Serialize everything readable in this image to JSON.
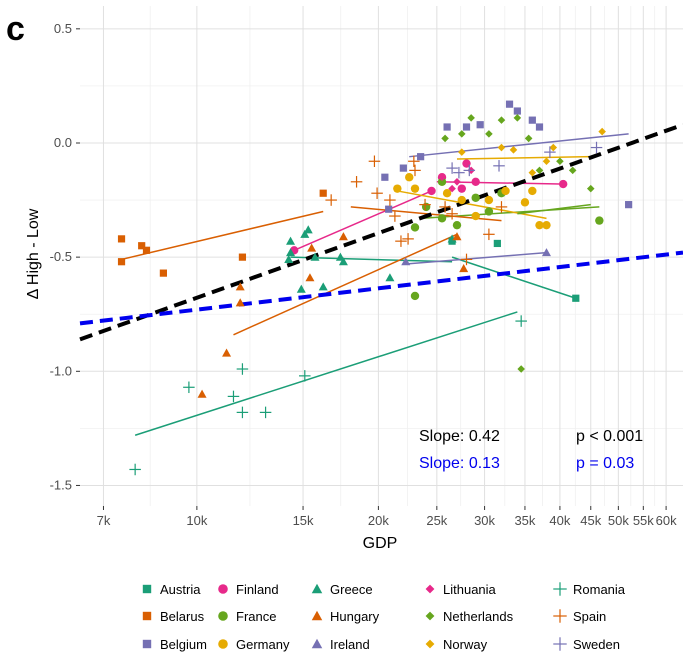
{
  "panel_label": "c",
  "chart_data": {
    "type": "scatter",
    "xlabel": "GDP",
    "ylabel": "Δ High - Low",
    "x_scale": "log",
    "xlim": [
      6400,
      64000
    ],
    "ylim": [
      -1.59,
      0.6
    ],
    "grid": true,
    "x_ticks": [
      {
        "value": 7000,
        "label": "7k"
      },
      {
        "value": 10000,
        "label": "10k"
      },
      {
        "value": 15000,
        "label": "15k"
      },
      {
        "value": 20000,
        "label": "20k"
      },
      {
        "value": 25000,
        "label": "25k"
      },
      {
        "value": 30000,
        "label": "30k"
      },
      {
        "value": 35000,
        "label": "35k"
      },
      {
        "value": 40000,
        "label": "40k"
      },
      {
        "value": 45000,
        "label": "45k"
      },
      {
        "value": 50000,
        "label": "50k"
      },
      {
        "value": 55000,
        "label": "55k"
      },
      {
        "value": 60000,
        "label": "60k"
      }
    ],
    "y_ticks": [
      {
        "value": 0.5,
        "label": "0.5"
      },
      {
        "value": 0.0,
        "label": "0.0"
      },
      {
        "value": -0.5,
        "label": "-0.5"
      },
      {
        "value": -1.0,
        "label": "-1.0"
      },
      {
        "value": -1.5,
        "label": "-1.5"
      }
    ],
    "legend_position": "bottom",
    "series": [
      {
        "name": "Austria",
        "color": "#1b9e77",
        "shape": "square",
        "points": [
          [
            31500,
            -0.44
          ],
          [
            42500,
            -0.68
          ],
          [
            26500,
            -0.43
          ]
        ],
        "fit": [
          [
            26500,
            -0.5
          ],
          [
            42500,
            -0.68
          ]
        ]
      },
      {
        "name": "Belarus",
        "color": "#d95f02",
        "shape": "square",
        "points": [
          [
            7500,
            -0.42
          ],
          [
            7500,
            -0.52
          ],
          [
            8100,
            -0.45
          ],
          [
            8250,
            -0.47
          ],
          [
            8800,
            -0.57
          ],
          [
            11900,
            -0.5
          ],
          [
            16200,
            -0.22
          ]
        ],
        "fit": [
          [
            7500,
            -0.51
          ],
          [
            16200,
            -0.3
          ]
        ]
      },
      {
        "name": "Belgium",
        "color": "#7570b3",
        "shape": "square",
        "points": [
          [
            22000,
            -0.11
          ],
          [
            23500,
            -0.06
          ],
          [
            26000,
            0.07
          ],
          [
            28000,
            0.07
          ],
          [
            29500,
            0.08
          ],
          [
            33000,
            0.17
          ],
          [
            34000,
            0.14
          ],
          [
            36000,
            0.1
          ],
          [
            37000,
            0.07
          ],
          [
            20500,
            -0.15
          ],
          [
            52000,
            -0.27
          ],
          [
            20800,
            -0.29
          ]
        ],
        "fit": null
      },
      {
        "name": "Finland",
        "color": "#e7298a",
        "shape": "circle",
        "points": [
          [
            24500,
            -0.21
          ],
          [
            25500,
            -0.15
          ],
          [
            27500,
            -0.2
          ],
          [
            29000,
            -0.17
          ],
          [
            40500,
            -0.18
          ],
          [
            28000,
            -0.09
          ],
          [
            14500,
            -0.47
          ]
        ],
        "fit": [
          [
            14500,
            -0.47
          ],
          [
            24500,
            -0.21
          ]
        ]
      },
      {
        "name": "France",
        "color": "#66a61e",
        "shape": "circle",
        "points": [
          [
            23000,
            -0.67
          ],
          [
            24000,
            -0.28
          ],
          [
            25500,
            -0.17
          ],
          [
            25500,
            -0.33
          ],
          [
            27000,
            -0.36
          ],
          [
            29000,
            -0.24
          ],
          [
            30500,
            -0.3
          ],
          [
            32000,
            -0.22
          ],
          [
            46500,
            -0.34
          ],
          [
            23000,
            -0.37
          ]
        ],
        "fit": [
          [
            23500,
            -0.33
          ],
          [
            46500,
            -0.28
          ]
        ]
      },
      {
        "name": "Germany",
        "color": "#e6ab02",
        "shape": "circle",
        "points": [
          [
            21500,
            -0.2
          ],
          [
            23000,
            -0.2
          ],
          [
            26000,
            -0.22
          ],
          [
            27500,
            -0.25
          ],
          [
            29000,
            -0.32
          ],
          [
            30500,
            -0.25
          ],
          [
            32500,
            -0.21
          ],
          [
            35000,
            -0.26
          ],
          [
            36000,
            -0.21
          ],
          [
            37000,
            -0.36
          ],
          [
            38000,
            -0.36
          ],
          [
            22500,
            -0.15
          ]
        ],
        "fit": [
          [
            21500,
            -0.21
          ],
          [
            38000,
            -0.33
          ]
        ]
      },
      {
        "name": "Greece",
        "color": "#1b9e77",
        "shape": "triangle",
        "points": [
          [
            14300,
            -0.43
          ],
          [
            14300,
            -0.48
          ],
          [
            15100,
            -0.4
          ],
          [
            15300,
            -0.38
          ],
          [
            15700,
            -0.5
          ],
          [
            17500,
            -0.52
          ],
          [
            17300,
            -0.5
          ],
          [
            16200,
            -0.63
          ],
          [
            14900,
            -0.64
          ],
          [
            20900,
            -0.59
          ],
          [
            26500,
            -0.42
          ],
          [
            14200,
            -0.51
          ]
        ],
        "fit": [
          [
            14300,
            -0.5
          ],
          [
            26500,
            -0.52
          ]
        ]
      },
      {
        "name": "Hungary",
        "color": "#d95f02",
        "shape": "triangle",
        "points": [
          [
            10200,
            -1.1
          ],
          [
            11200,
            -0.92
          ],
          [
            11800,
            -0.7
          ],
          [
            11800,
            -0.63
          ],
          [
            15400,
            -0.59
          ],
          [
            15500,
            -0.46
          ],
          [
            17500,
            -0.41
          ],
          [
            27700,
            -0.55
          ],
          [
            27000,
            -0.41
          ]
        ],
        "fit": [
          [
            11500,
            -0.84
          ],
          [
            27000,
            -0.4
          ]
        ]
      },
      {
        "name": "Ireland",
        "color": "#7570b3",
        "shape": "triangle",
        "points": [
          [
            22200,
            -0.52
          ],
          [
            38000,
            -0.48
          ]
        ],
        "fit": [
          [
            22200,
            -0.53
          ],
          [
            38000,
            -0.48
          ]
        ]
      },
      {
        "name": "Lithuania",
        "color": "#e7298a",
        "shape": "diamond",
        "points": [
          [
            25500,
            -0.15
          ],
          [
            26500,
            -0.2
          ],
          [
            27000,
            -0.17
          ],
          [
            24500,
            -0.21
          ],
          [
            28500,
            -0.12
          ]
        ],
        "fit": [
          [
            25000,
            -0.17
          ],
          [
            41000,
            -0.18
          ]
        ]
      },
      {
        "name": "Netherlands",
        "color": "#66a61e",
        "shape": "diamond",
        "points": [
          [
            25800,
            0.02
          ],
          [
            27500,
            0.04
          ],
          [
            28500,
            0.11
          ],
          [
            30500,
            0.04
          ],
          [
            32000,
            0.1
          ],
          [
            34000,
            0.11
          ],
          [
            35500,
            0.02
          ],
          [
            37000,
            -0.12
          ],
          [
            40000,
            -0.08
          ],
          [
            42000,
            -0.12
          ],
          [
            45000,
            -0.2
          ],
          [
            34500,
            -0.99
          ]
        ],
        "fit": [
          [
            34000,
            -0.31
          ],
          [
            45000,
            -0.27
          ]
        ]
      },
      {
        "name": "Norway",
        "color": "#e6ab02",
        "shape": "diamond",
        "points": [
          [
            27500,
            -0.04
          ],
          [
            32000,
            -0.02
          ],
          [
            33500,
            -0.03
          ],
          [
            39000,
            -0.02
          ],
          [
            47000,
            0.05
          ],
          [
            38000,
            -0.08
          ],
          [
            36000,
            -0.13
          ]
        ],
        "fit": [
          [
            27000,
            -0.07
          ],
          [
            45000,
            -0.06
          ]
        ]
      },
      {
        "name": "Romania",
        "color": "#1b9e77",
        "shape": "plus",
        "points": [
          [
            7900,
            -1.43
          ],
          [
            9700,
            -1.07
          ],
          [
            11500,
            -1.11
          ],
          [
            11900,
            -0.99
          ],
          [
            11900,
            -1.18
          ],
          [
            13000,
            -1.18
          ],
          [
            15100,
            -1.02
          ],
          [
            34500,
            -0.78
          ]
        ],
        "fit": [
          [
            7900,
            -1.28
          ],
          [
            34000,
            -0.74
          ]
        ]
      },
      {
        "name": "Spain",
        "color": "#d95f02",
        "shape": "plus",
        "points": [
          [
            16700,
            -0.25
          ],
          [
            18400,
            -0.17
          ],
          [
            19700,
            -0.08
          ],
          [
            19900,
            -0.22
          ],
          [
            20900,
            -0.25
          ],
          [
            21300,
            -0.32
          ],
          [
            21800,
            -0.43
          ],
          [
            22400,
            -0.42
          ],
          [
            22900,
            -0.08
          ],
          [
            23000,
            -0.12
          ],
          [
            23900,
            -0.27
          ],
          [
            25800,
            -0.28
          ],
          [
            26500,
            -0.31
          ],
          [
            28000,
            -0.51
          ],
          [
            30500,
            -0.4
          ],
          [
            32000,
            -0.28
          ]
        ],
        "fit": [
          [
            18000,
            -0.28
          ],
          [
            32000,
            -0.34
          ]
        ]
      },
      {
        "name": "Sweden",
        "color": "#7570b3",
        "shape": "plus",
        "points": [
          [
            26500,
            -0.11
          ],
          [
            27200,
            -0.13
          ],
          [
            28300,
            -0.12
          ],
          [
            31700,
            -0.1
          ],
          [
            38500,
            -0.04
          ],
          [
            46000,
            -0.02
          ]
        ],
        "fit": [
          [
            22500,
            -0.06
          ],
          [
            52000,
            0.04
          ]
        ]
      }
    ],
    "overall_fits": [
      {
        "color": "#000000",
        "line": [
          [
            6400,
            -0.86
          ],
          [
            64000,
            0.08
          ]
        ],
        "slope_label": "Slope: 0.42",
        "p_label": "p < 0.001"
      },
      {
        "color": "#0000ee",
        "line": [
          [
            6400,
            -0.79
          ],
          [
            64000,
            -0.48
          ]
        ],
        "slope_label": "Slope: 0.13",
        "p_label": "p =  0.03"
      }
    ]
  }
}
